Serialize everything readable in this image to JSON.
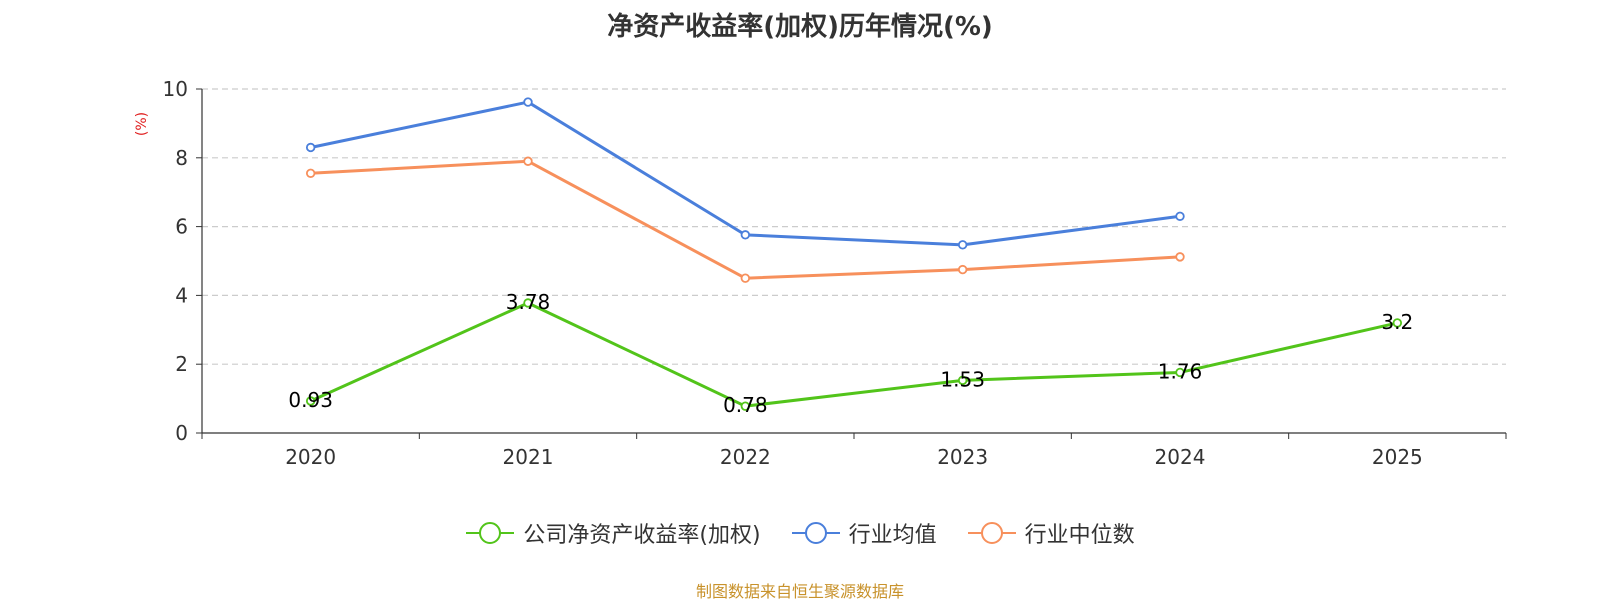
{
  "chart_data": {
    "type": "line",
    "title": "净资产收益率(加权)历年情况(%)",
    "ylabel": "(%)",
    "xlabel": "",
    "ylim": [
      0,
      10
    ],
    "yticks": [
      0,
      2,
      4,
      6,
      8,
      10
    ],
    "grid": true,
    "legend_position": "bottom-center",
    "categories": [
      "2020",
      "2021",
      "2022",
      "2023",
      "2024",
      "2025"
    ],
    "series": [
      {
        "name": "公司净资产收益率(加权)",
        "color": "#52c41a",
        "values": [
          0.93,
          3.78,
          0.78,
          1.53,
          1.76,
          3.2
        ],
        "labels": true
      },
      {
        "name": "行业均值",
        "color": "#4a7fdb",
        "values": [
          8.3,
          9.62,
          5.76,
          5.47,
          6.3,
          null
        ],
        "labels": false
      },
      {
        "name": "行业中位数",
        "color": "#f7905c",
        "values": [
          7.55,
          7.9,
          4.5,
          4.75,
          5.12,
          null
        ],
        "labels": false
      }
    ]
  },
  "source": "制图数据来自恒生聚源数据库",
  "colors": {
    "ylabel": "#e02020",
    "grid": "#cccccc",
    "axis": "#333333"
  }
}
